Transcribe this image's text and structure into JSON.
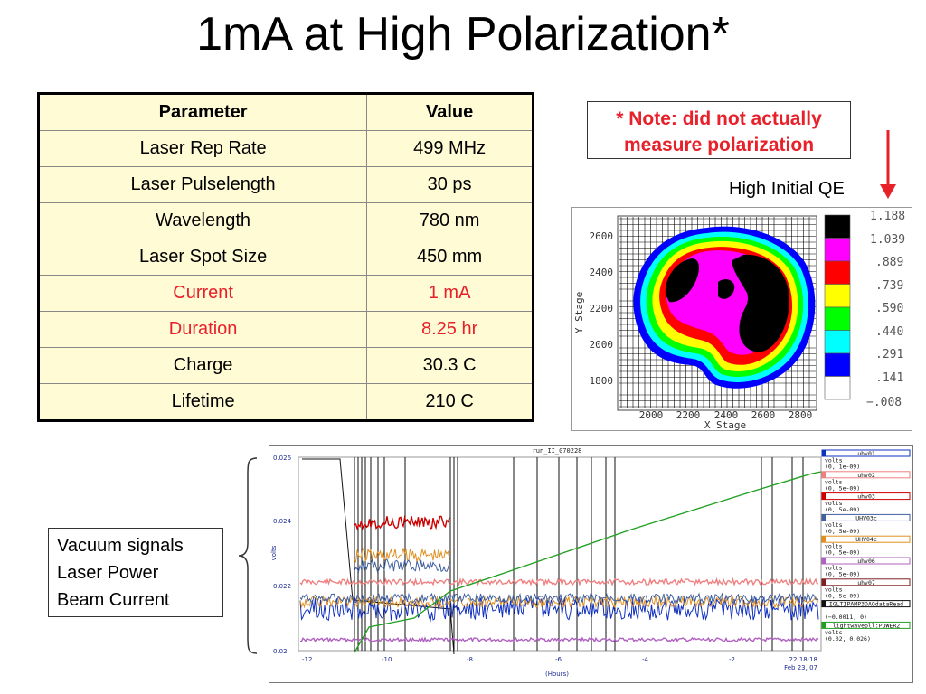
{
  "title": "1mA at High Polarization*",
  "table": {
    "headers": [
      "Parameter",
      "Value"
    ],
    "rows": [
      {
        "param": "Laser Rep Rate",
        "value": "499 MHz"
      },
      {
        "param": "Laser Pulselength",
        "value": "30 ps"
      },
      {
        "param": "Wavelength",
        "value": "780 nm"
      },
      {
        "param": "Laser Spot Size",
        "value": "450 mm"
      },
      {
        "param": "Current",
        "value": "1 mA"
      },
      {
        "param": "Duration",
        "value": "8.25 hr"
      },
      {
        "param": "Charge",
        "value": "30.3 C"
      },
      {
        "param": "Lifetime",
        "value": "210 C"
      }
    ]
  },
  "note": {
    "line1": "* Note: did not actually",
    "line2": "measure polarization"
  },
  "qe_label": "High Initial QE",
  "qe_map": {
    "y_axis_label": "Y Stage",
    "x_axis_label": "X Stage",
    "y_ticks": [
      "2600",
      "2400",
      "2200",
      "2000",
      "1800"
    ],
    "x_ticks": [
      "2000",
      "2200",
      "2400",
      "2600",
      "2800"
    ],
    "scale_labels": [
      "1.188",
      "1.039",
      ".889",
      ".739",
      ".590",
      ".440",
      ".291",
      ".141",
      "−.008"
    ],
    "scale_colors": [
      "#000000",
      "#ff00ff",
      "#ff0000",
      "#ffff00",
      "#00ff00",
      "#00ffff",
      "#0000ff",
      "#ffffff"
    ]
  },
  "scope": {
    "title": "run_II_070228",
    "y_axis_label": "volts",
    "x_axis_label": "(Hours)",
    "y_ticks": [
      "0.026",
      "0.024",
      "0.022",
      "0.02"
    ],
    "x_ticks": [
      "-12",
      "-10",
      "-8",
      "-6",
      "-4",
      "-2"
    ],
    "timestamp": "22:18:18",
    "date": "Feb 23, 07",
    "legend": [
      {
        "name": "uhv01",
        "color": "#1030c0",
        "units": "volts",
        "range": "(0, 1e-09)"
      },
      {
        "name": "uhv02",
        "color": "#f08080",
        "units": "volts",
        "range": "(0, 5e-09)"
      },
      {
        "name": "uhv03",
        "color": "#d00000",
        "units": "volts",
        "range": "(0, 5e-09)"
      },
      {
        "name": "UHV03c",
        "color": "#4060a0",
        "units": "volts",
        "range": "(0, 5e-09)"
      },
      {
        "name": "UHV04c",
        "color": "#e09020",
        "units": "volts",
        "range": "(0, 5e-09)"
      },
      {
        "name": "uhv06",
        "color": "#b060c0",
        "units": "volts",
        "range": "(0, 5e-09)"
      },
      {
        "name": "uhv07",
        "color": "#802020",
        "units": "volts",
        "range": "(0, 5e-09)"
      },
      {
        "name": "IGLTIPAMP3DAQdataRead",
        "color": "#101010",
        "units": "",
        "range": "(−0.0011, 0)"
      },
      {
        "name": "lightwavepll:POWER2",
        "color": "#20a020",
        "units": "volts",
        "range": "(0.02, 0.026)"
      }
    ]
  },
  "signals_box": {
    "line1": "Vacuum signals",
    "line2": "Laser Power",
    "line3": "Beam Current"
  }
}
